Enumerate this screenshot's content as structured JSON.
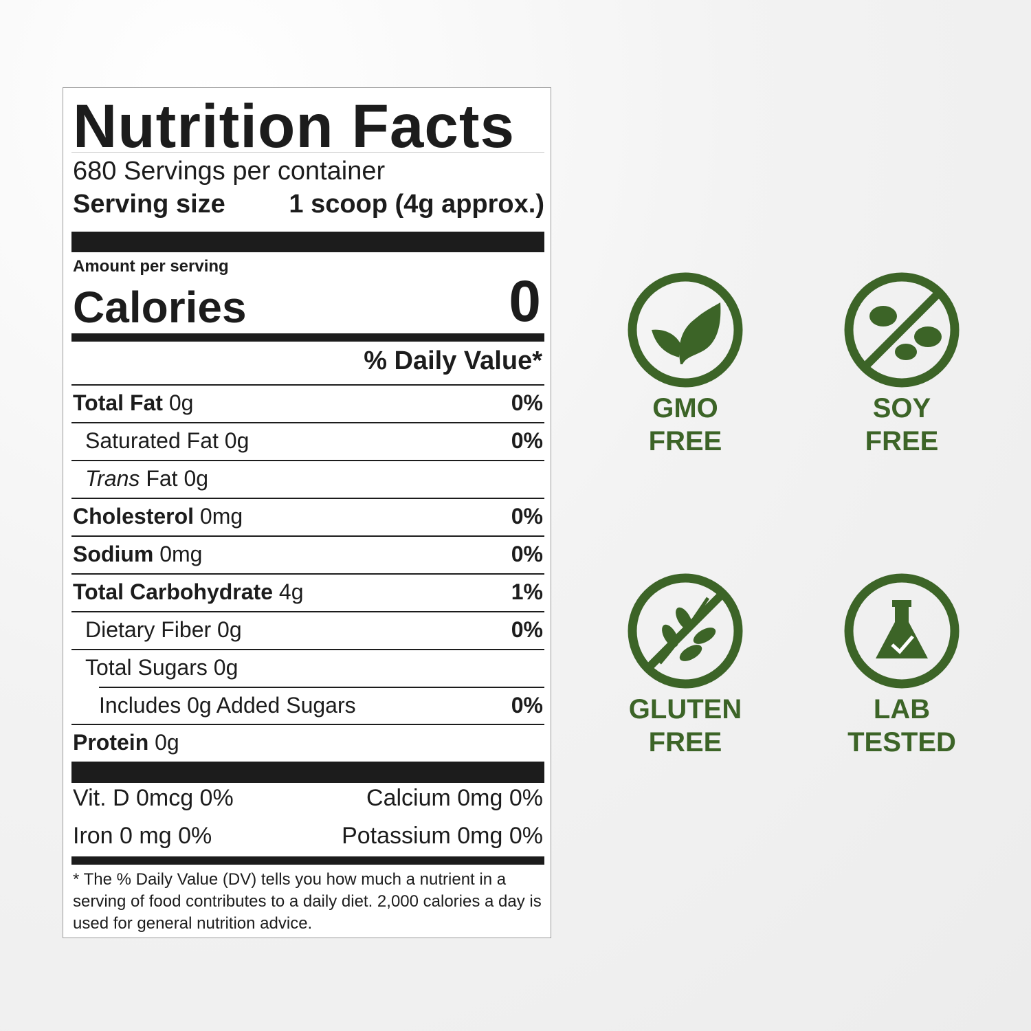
{
  "label": {
    "title": "Nutrition Facts",
    "servings": "680 Servings per container",
    "serving_size": {
      "label": "Serving size",
      "value": "1 scoop (4g approx.)"
    },
    "amount_per_serving": "Amount per serving",
    "calories": {
      "label": "Calories",
      "value": "0"
    },
    "daily_value_header": "% Daily Value*",
    "rows": [
      {
        "name": "Total Fat",
        "amount": "0g",
        "dv": "0%"
      },
      {
        "name": "Saturated Fat",
        "amount": "0g",
        "dv": "0%"
      },
      {
        "name": "Trans",
        "amount": "Fat 0g"
      },
      {
        "name": "Cholesterol",
        "amount": "0mg",
        "dv": "0%"
      },
      {
        "name": "Sodium",
        "amount": "0mg",
        "dv": "0%"
      },
      {
        "name": "Total Carbohydrate",
        "amount": "4g",
        "dv": "1%"
      },
      {
        "name": "Dietary Fiber",
        "amount": "0g",
        "dv": "0%"
      },
      {
        "name": "Total Sugars",
        "amount": "0g"
      },
      {
        "name": "Includes 0g Added Sugars",
        "dv": "0%"
      },
      {
        "name": "Protein",
        "amount": "0g"
      }
    ],
    "vitamins": [
      [
        "Vit. D 0mcg 0%",
        "Calcium 0mg 0%"
      ],
      [
        "Iron 0 mg 0%",
        "Potassium 0mg 0%"
      ]
    ],
    "footnote": "* The % Daily Value (DV) tells you how much a nutrient in a serving of food contributes to a daily diet. 2,000 calories a day is used for general nutrition advice."
  },
  "badges": [
    {
      "lines": [
        "GMO",
        "FREE"
      ]
    },
    {
      "lines": [
        "SOY",
        "FREE"
      ]
    },
    {
      "lines": [
        "GLUTEN",
        "FREE"
      ]
    },
    {
      "lines": [
        "LAB",
        "TESTED"
      ]
    }
  ]
}
